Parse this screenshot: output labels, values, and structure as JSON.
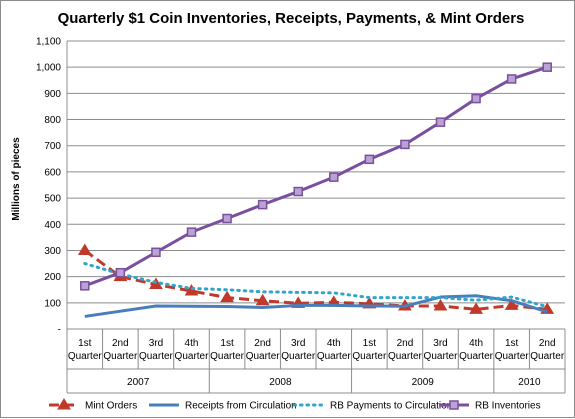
{
  "chart_data": {
    "type": "line",
    "title": "Quarterly $1 Coin Inventories, Receipts, Payments, & Mint Orders",
    "ylabel": "Millions of pieces",
    "xlabel": "",
    "ylim": [
      0,
      1100
    ],
    "yticks": [
      "-",
      "100",
      "200",
      "300",
      "400",
      "500",
      "600",
      "700",
      "800",
      "900",
      "1,000",
      "1,100"
    ],
    "categories": [
      [
        "1st",
        "Quarter"
      ],
      [
        "2nd",
        "Quarter"
      ],
      [
        "3rd",
        "Quarter"
      ],
      [
        "4th",
        "Quarter"
      ],
      [
        "1st",
        "Quarter"
      ],
      [
        "2nd",
        "Quarter"
      ],
      [
        "3rd",
        "Quarter"
      ],
      [
        "4th",
        "Quarter"
      ],
      [
        "1st",
        "Quarter"
      ],
      [
        "2nd",
        "Quarter"
      ],
      [
        "3rd",
        "Quarter"
      ],
      [
        "4th",
        "Quarter"
      ],
      [
        "1st",
        "Quarter"
      ],
      [
        "2nd",
        "Quarter"
      ]
    ],
    "year_groups": [
      {
        "label": "2007",
        "count": 4
      },
      {
        "label": "2008",
        "count": 4
      },
      {
        "label": "2009",
        "count": 4
      },
      {
        "label": "2010",
        "count": 2
      }
    ],
    "grid": "horizontal",
    "legend_position": "bottom",
    "series": [
      {
        "name": "Mint Orders",
        "color": "#c0392b",
        "style": "dashed-triangle",
        "values": [
          300,
          200,
          170,
          145,
          120,
          108,
          98,
          102,
          96,
          88,
          88,
          75,
          90,
          75
        ]
      },
      {
        "name": "Receipts from Circulation",
        "color": "#4a7ebb",
        "style": "solid",
        "values": [
          48,
          68,
          88,
          87,
          86,
          82,
          90,
          90,
          88,
          87,
          122,
          127,
          108,
          65
        ]
      },
      {
        "name": "RB Payments to Circulation",
        "color": "#30a5c8",
        "style": "dotted",
        "values": [
          250,
          210,
          178,
          155,
          150,
          142,
          140,
          138,
          120,
          120,
          120,
          110,
          122,
          85
        ]
      },
      {
        "name": "RB Inventories",
        "color": "#7a4fa0",
        "style": "solid-square",
        "values": [
          165,
          215,
          293,
          370,
          422,
          475,
          525,
          580,
          648,
          705,
          790,
          880,
          955,
          1000
        ]
      }
    ]
  }
}
